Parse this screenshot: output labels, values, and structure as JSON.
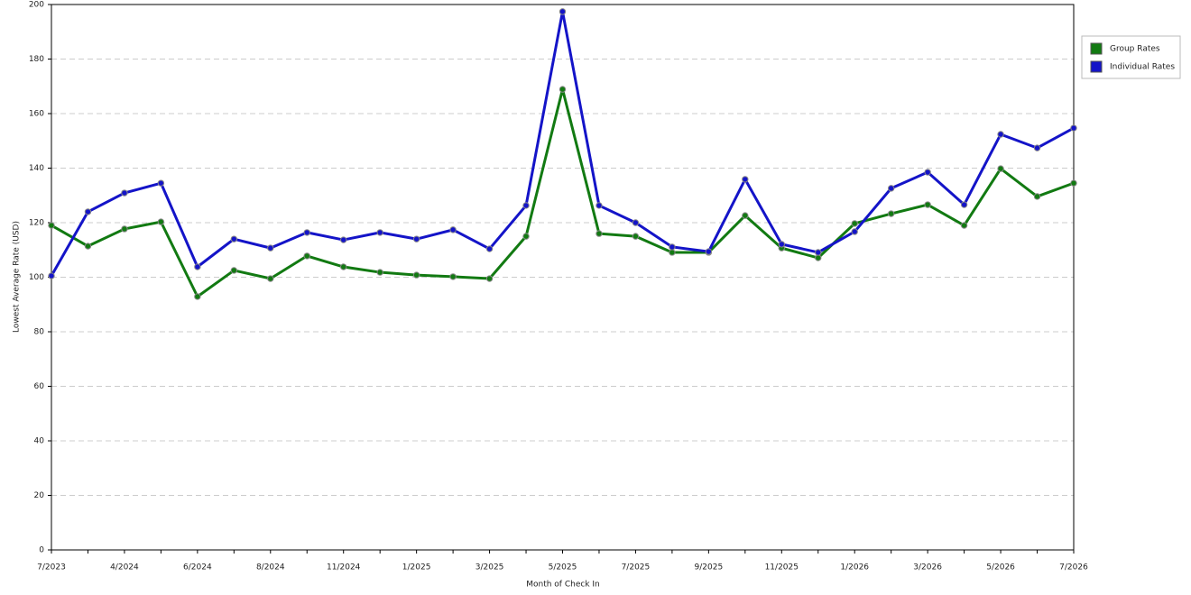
{
  "chart_data": {
    "type": "line",
    "x_label": "Month of Check In",
    "y_label": "Lowest Average Rate (USD)",
    "categories": [
      "7/2023",
      null,
      "4/2024",
      null,
      "6/2024",
      null,
      "8/2024",
      null,
      "11/2024",
      null,
      "1/2025",
      null,
      "3/2025",
      null,
      "5/2025",
      null,
      "7/2025",
      null,
      "9/2025",
      null,
      "11/2025",
      null,
      "1/2026",
      null,
      "3/2026",
      null,
      "5/2026",
      null,
      "7/2026"
    ],
    "series": [
      {
        "name": "Group Rates",
        "color": "#127a12",
        "values": [
          119.0,
          111.4,
          117.7,
          120.3,
          92.9,
          102.5,
          99.5,
          107.8,
          103.8,
          101.8,
          100.8,
          100.2,
          99.5,
          115.0,
          168.9,
          116.0,
          115.0,
          109.1,
          109.1,
          122.6,
          110.7,
          107.1,
          119.7,
          123.3,
          126.6,
          119.0,
          139.8,
          129.6,
          134.5
        ]
      },
      {
        "name": "Individual Rates",
        "color": "#1414c8",
        "values": [
          100.5,
          124.0,
          130.9,
          134.5,
          103.8,
          114.0,
          110.7,
          116.4,
          113.7,
          116.4,
          114.0,
          117.4,
          110.4,
          126.3,
          197.4,
          126.3,
          120.0,
          111.1,
          109.4,
          135.9,
          112.1,
          109.1,
          116.7,
          132.6,
          138.5,
          126.6,
          152.4,
          147.4,
          154.7
        ]
      }
    ],
    "ylim": [
      0,
      200
    ],
    "yticks": [
      0,
      20,
      40,
      60,
      80,
      100,
      120,
      140,
      160,
      180,
      200
    ],
    "grid": true,
    "legend": "right"
  }
}
